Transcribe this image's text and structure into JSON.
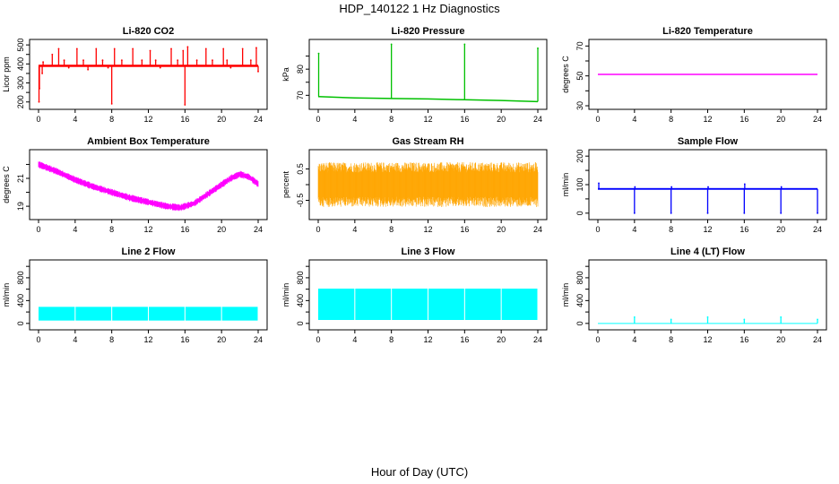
{
  "title": "HDP_140122  1 Hz Diagnostics",
  "xlabel": "Hour of Day (UTC)",
  "chart_data": [
    {
      "type": "line",
      "title": "Li-820 CO2",
      "ylabel": "Licor ppm",
      "color": "#ff0000",
      "xlim": [
        0,
        24
      ],
      "xticks": [
        0,
        4,
        8,
        12,
        16,
        20,
        24
      ],
      "ylim": [
        180,
        510
      ],
      "yticks": [
        200,
        250,
        300,
        350,
        400,
        450,
        500
      ],
      "ytick_labels": [
        "200",
        "",
        "300",
        "",
        "400",
        "",
        "500"
      ],
      "series": [
        {
          "baseline": 390,
          "band": [
            384,
            396
          ],
          "spikes": [
            [
              0.05,
              200
            ],
            [
              0.1,
              270
            ],
            [
              0.4,
              350
            ],
            [
              0.5,
              410
            ],
            [
              1.5,
              450
            ],
            [
              2.2,
              480
            ],
            [
              2.8,
              420
            ],
            [
              3.3,
              380
            ],
            [
              4.2,
              480
            ],
            [
              4.9,
              420
            ],
            [
              5.4,
              370
            ],
            [
              6.3,
              480
            ],
            [
              7.0,
              420
            ],
            [
              7.6,
              380
            ],
            [
              8.0,
              190
            ],
            [
              8.3,
              480
            ],
            [
              9.1,
              420
            ],
            [
              10.3,
              480
            ],
            [
              11.3,
              420
            ],
            [
              12.2,
              470
            ],
            [
              12.8,
              420
            ],
            [
              13.3,
              380
            ],
            [
              14.5,
              480
            ],
            [
              15.2,
              420
            ],
            [
              15.8,
              470
            ],
            [
              16.0,
              185
            ],
            [
              16.3,
              490
            ],
            [
              17.3,
              420
            ],
            [
              18.3,
              480
            ],
            [
              19.0,
              420
            ],
            [
              20.2,
              480
            ],
            [
              20.6,
              420
            ],
            [
              21.0,
              380
            ],
            [
              22.3,
              480
            ],
            [
              23.2,
              420
            ],
            [
              23.8,
              485
            ],
            [
              24.0,
              360
            ]
          ]
        }
      ]
    },
    {
      "type": "line",
      "title": "Li-820 Pressure",
      "ylabel": "kPa",
      "color": "#00c000",
      "xlim": [
        0,
        24
      ],
      "xticks": [
        0,
        4,
        8,
        12,
        16,
        20,
        24
      ],
      "ylim": [
        66,
        90
      ],
      "yticks": [
        70,
        75,
        80,
        85
      ],
      "ytick_labels": [
        "70",
        "",
        "80",
        ""
      ],
      "series": [
        {
          "trend": [
            [
              0,
              69.5
            ],
            [
              4,
              69.0
            ],
            [
              8,
              68.8
            ],
            [
              12,
              68.6
            ],
            [
              16,
              68.3
            ],
            [
              20,
              68.0
            ],
            [
              24,
              67.6
            ]
          ],
          "spikes": [
            [
              0.05,
              86
            ],
            [
              8.0,
              89.5
            ],
            [
              16.0,
              89.5
            ],
            [
              24.0,
              88
            ]
          ]
        }
      ]
    },
    {
      "type": "line",
      "title": "Li-820 Temperature",
      "ylabel": "degrees C",
      "color": "#ff00ff",
      "xlim": [
        0,
        24
      ],
      "xticks": [
        0,
        4,
        8,
        12,
        16,
        20,
        24
      ],
      "ylim": [
        30,
        72
      ],
      "yticks": [
        30,
        40,
        50,
        60,
        70
      ],
      "ytick_labels": [
        "30",
        "",
        "50",
        "",
        "70"
      ],
      "series": [
        {
          "trend": [
            [
              0,
              51
            ],
            [
              24,
              51
            ]
          ]
        }
      ]
    },
    {
      "type": "line",
      "title": "Ambient Box Temperature",
      "ylabel": "degrees C",
      "color": "#ff00ff",
      "xlim": [
        0,
        24
      ],
      "xticks": [
        0,
        4,
        8,
        12,
        16,
        20,
        24
      ],
      "ylim": [
        18.3,
        22.8
      ],
      "yticks": [
        19,
        20,
        21,
        22
      ],
      "ytick_labels": [
        "19",
        "",
        "21",
        ""
      ],
      "series": [
        {
          "trend": [
            [
              0,
              22.0
            ],
            [
              2,
              21.5
            ],
            [
              4,
              20.9
            ],
            [
              6,
              20.4
            ],
            [
              8,
              20.0
            ],
            [
              10,
              19.6
            ],
            [
              12,
              19.3
            ],
            [
              14,
              19.0
            ],
            [
              15.5,
              18.9
            ],
            [
              17,
              19.2
            ],
            [
              19,
              20.1
            ],
            [
              21,
              21.0
            ],
            [
              22,
              21.3
            ],
            [
              23,
              21.1
            ],
            [
              24,
              20.6
            ]
          ],
          "noise": 0.5
        }
      ]
    },
    {
      "type": "line",
      "title": "Gas Stream RH",
      "ylabel": "percent",
      "color": "#ffa500",
      "xlim": [
        0,
        24
      ],
      "xticks": [
        0,
        4,
        8,
        12,
        16,
        20,
        24
      ],
      "ylim": [
        -1.0,
        1.0
      ],
      "yticks": [
        -0.5,
        0.0,
        0.5
      ],
      "ytick_labels": [
        "-0.5",
        "",
        "0.5"
      ],
      "series": [
        {
          "band": [
            -0.65,
            0.65
          ]
        }
      ]
    },
    {
      "type": "line",
      "title": "Sample Flow",
      "ylabel": "ml/min",
      "color": "#0000ff",
      "xlim": [
        0,
        24
      ],
      "xticks": [
        0,
        4,
        8,
        12,
        16,
        20,
        24
      ],
      "ylim": [
        -10,
        210
      ],
      "yticks": [
        0,
        50,
        100,
        150,
        200
      ],
      "ytick_labels": [
        "0",
        "",
        "100",
        "",
        "200"
      ],
      "series": [
        {
          "baseline": 85,
          "band": [
            82,
            88
          ],
          "spikes": [
            [
              0.1,
              105
            ],
            [
              4.0,
              0
            ],
            [
              8.0,
              0
            ],
            [
              12.0,
              0
            ],
            [
              16.0,
              0
            ],
            [
              20.0,
              0
            ],
            [
              24.0,
              0
            ],
            [
              4.05,
              92
            ],
            [
              8.05,
              92
            ],
            [
              12.05,
              92
            ],
            [
              16.05,
              102
            ],
            [
              20.05,
              92
            ]
          ]
        }
      ]
    },
    {
      "type": "area",
      "title": "Line 2 Flow",
      "ylabel": "ml/min",
      "color": "#00ffff",
      "xlim": [
        0,
        24
      ],
      "xticks": [
        0,
        4,
        8,
        12,
        16,
        20,
        24
      ],
      "ylim": [
        -50,
        1050
      ],
      "yticks": [
        0,
        200,
        400,
        600,
        800,
        1000
      ],
      "ytick_labels": [
        "0",
        "",
        "400",
        "",
        "800",
        ""
      ],
      "series": [
        {
          "band": [
            50,
            290
          ],
          "gaps": [
            3.95,
            7.95,
            11.95,
            15.95,
            19.95,
            23.95
          ]
        }
      ]
    },
    {
      "type": "area",
      "title": "Line 3 Flow",
      "ylabel": "ml/min",
      "color": "#00ffff",
      "xlim": [
        0,
        24
      ],
      "xticks": [
        0,
        4,
        8,
        12,
        16,
        20,
        24
      ],
      "ylim": [
        -50,
        1050
      ],
      "yticks": [
        0,
        200,
        400,
        600,
        800,
        1000
      ],
      "ytick_labels": [
        "0",
        "",
        "400",
        "",
        "800",
        ""
      ],
      "series": [
        {
          "band": [
            60,
            610
          ],
          "gaps": [
            3.95,
            7.95,
            11.95,
            15.95,
            19.95,
            23.95
          ]
        }
      ]
    },
    {
      "type": "line",
      "title": "Line 4 (LT) Flow",
      "ylabel": "ml/min",
      "color": "#00ffff",
      "xlim": [
        0,
        24
      ],
      "xticks": [
        0,
        4,
        8,
        12,
        16,
        20,
        24
      ],
      "ylim": [
        -50,
        1050
      ],
      "yticks": [
        0,
        200,
        400,
        600,
        800,
        1000
      ],
      "ytick_labels": [
        "0",
        "",
        "400",
        "",
        "800",
        ""
      ],
      "series": [
        {
          "baseline": 0,
          "spikes": [
            [
              4.0,
              110
            ],
            [
              8.0,
              70
            ],
            [
              12.0,
              110
            ],
            [
              16.0,
              70
            ],
            [
              20.0,
              110
            ],
            [
              24.0,
              70
            ]
          ]
        }
      ]
    }
  ]
}
